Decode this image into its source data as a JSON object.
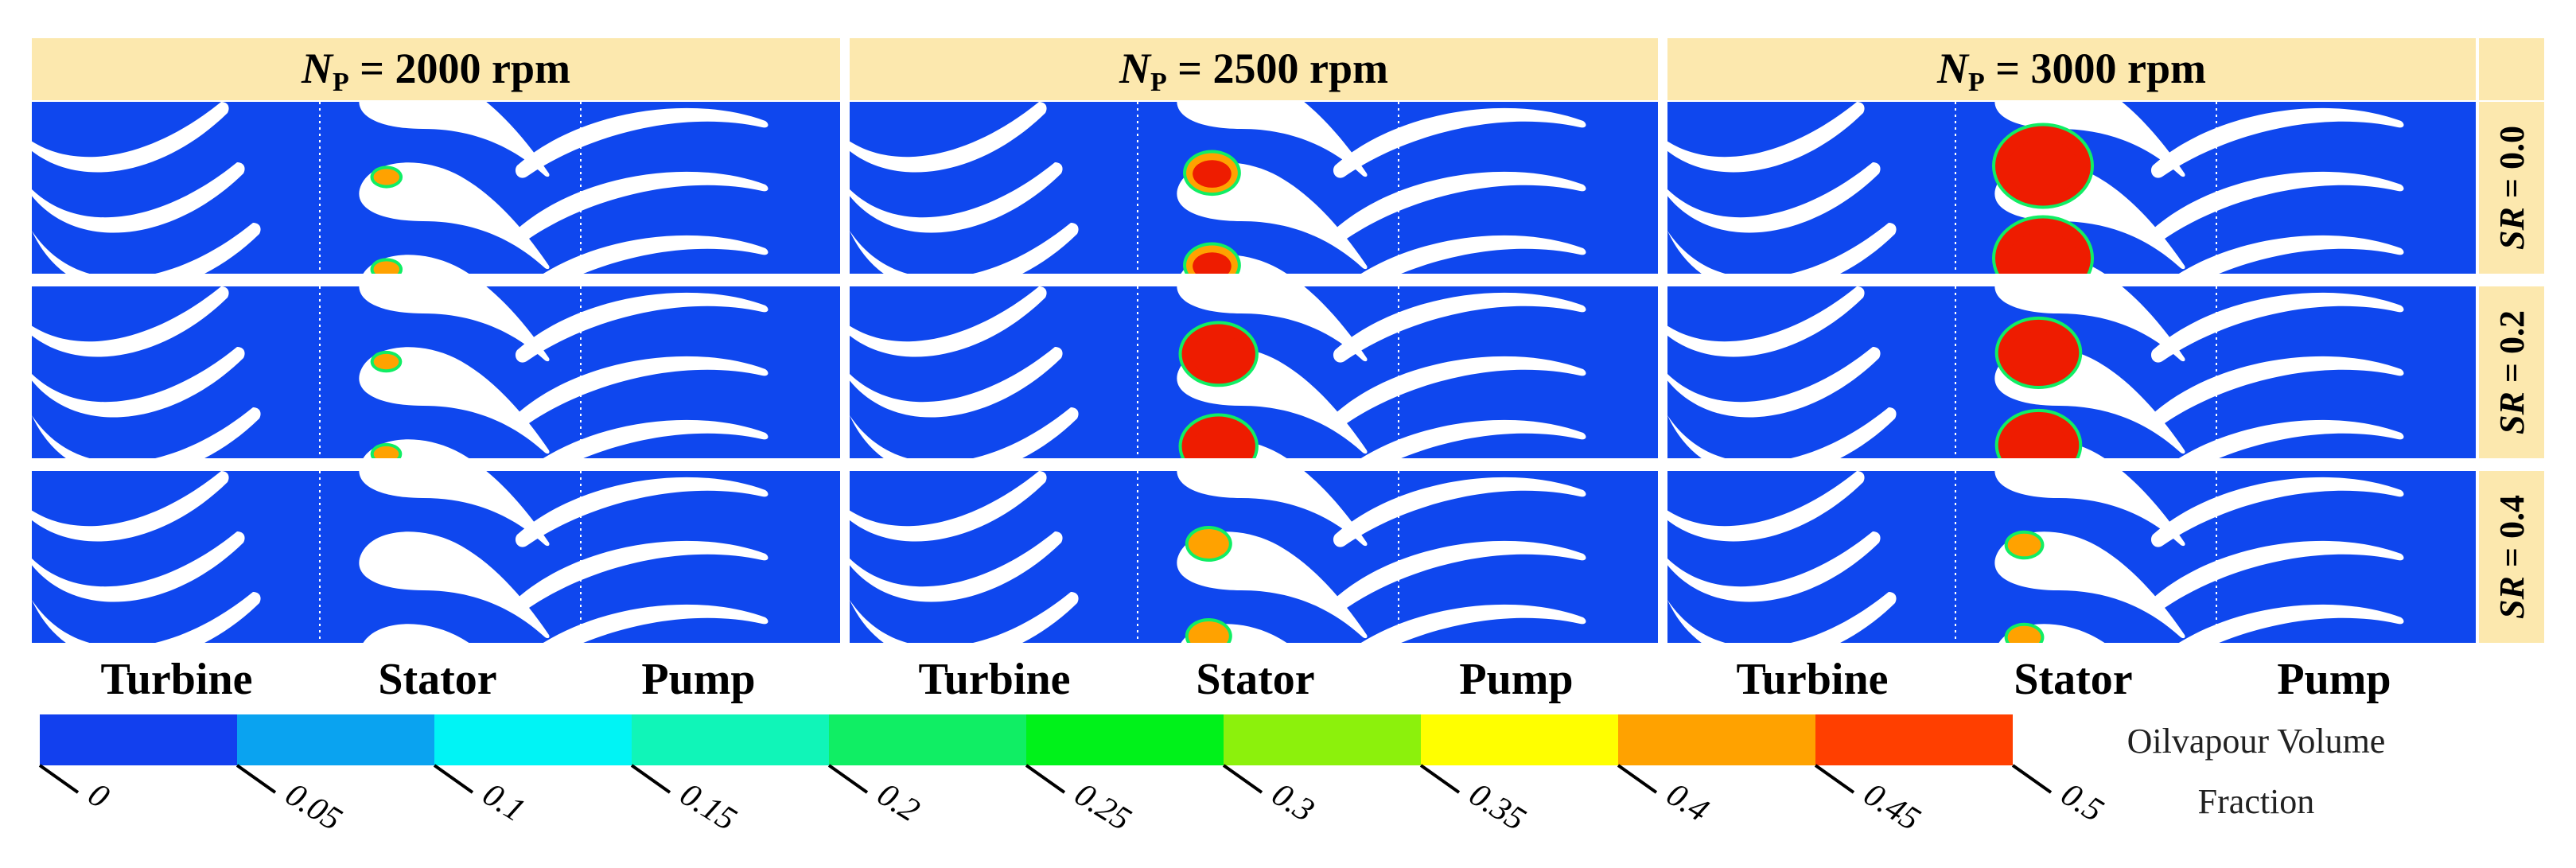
{
  "figure": {
    "columns": [
      {
        "prefix": "N",
        "subscript": "P",
        "value": " = 2000 rpm"
      },
      {
        "prefix": "N",
        "subscript": "P",
        "value": " = 2500 rpm"
      },
      {
        "prefix": "N",
        "subscript": "P",
        "value": " = 3000 rpm"
      }
    ],
    "rows": [
      {
        "var": "SR",
        "value": " = 0.0"
      },
      {
        "var": "SR",
        "value": " = 0.2"
      },
      {
        "var": "SR",
        "value": " = 0.4"
      }
    ],
    "components": [
      "Turbine",
      "Stator",
      "Pump"
    ],
    "colors": {
      "field": "#0f47ee",
      "blade": "#ffffff",
      "header_bg": "#fce8ae",
      "cavity_core": "#ee1c00"
    },
    "cavitation_level": [
      [
        0.05,
        0.4,
        1.0
      ],
      [
        0.04,
        0.7,
        0.8
      ],
      [
        0.0,
        0.25,
        0.15
      ]
    ]
  },
  "colorbar": {
    "title_line1": "Oilvapour Volume",
    "title_line2": "Fraction",
    "ticks": [
      "0",
      "0.05",
      "0.1",
      "0.15",
      "0.2",
      "0.25",
      "0.3",
      "0.35",
      "0.4",
      "0.45",
      "0.5"
    ],
    "colors": [
      "#1240ee",
      "#0aa3f0",
      "#00f4f5",
      "#10f5b8",
      "#10ee64",
      "#00f21a",
      "#8cf10c",
      "#ffff00",
      "#ffa200",
      "#ff3f00"
    ]
  }
}
